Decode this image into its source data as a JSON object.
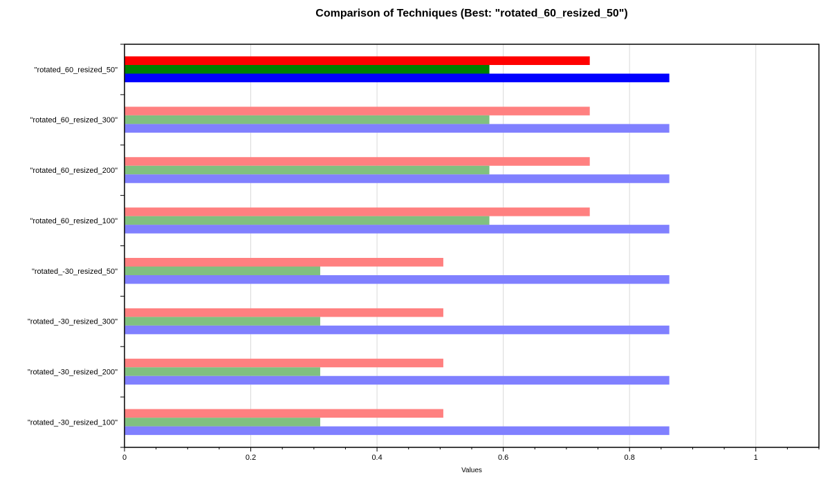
{
  "chart_data": {
    "type": "bar",
    "orientation": "horizontal",
    "title": "Comparison of Techniques (Best: \"rotated_60_resized_50\")",
    "xlabel": "Values",
    "ylabel": "",
    "xlim": [
      0,
      1.1
    ],
    "xticks": [
      "0",
      "0.2",
      "0.4",
      "0.6",
      "0.8",
      "1"
    ],
    "xtick_values": [
      0,
      0.2,
      0.4,
      0.6,
      0.8,
      1.0
    ],
    "grid": "vertical",
    "legend": "none",
    "highlight_category": "\"rotated_60_resized_50\"",
    "categories": [
      "\"rotated_60_resized_50\"",
      "\"rotated_60_resized_300\"",
      "\"rotated_60_resized_200\"",
      "\"rotated_60_resized_100\"",
      "\"rotated_-30_resized_50\"",
      "\"rotated_-30_resized_300\"",
      "\"rotated_-30_resized_200\"",
      "\"rotated_-30_resized_100\""
    ],
    "series": [
      {
        "color": "#ff0000",
        "faded_color": "#ff8080",
        "values": [
          0.737,
          0.737,
          0.737,
          0.737,
          0.505,
          0.505,
          0.505,
          0.505
        ]
      },
      {
        "color": "#008000",
        "faded_color": "#80c080",
        "values": [
          0.578,
          0.578,
          0.578,
          0.578,
          0.31,
          0.31,
          0.31,
          0.31
        ]
      },
      {
        "color": "#0000ff",
        "faded_color": "#8080ff",
        "values": [
          0.863,
          0.863,
          0.863,
          0.863,
          0.863,
          0.863,
          0.863,
          0.863
        ]
      }
    ]
  }
}
